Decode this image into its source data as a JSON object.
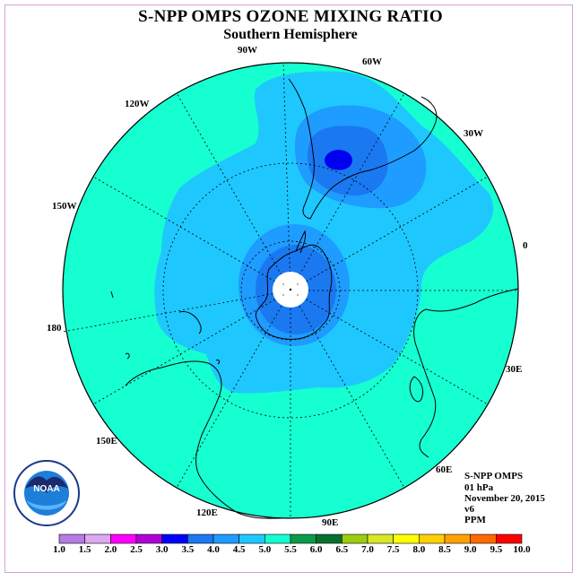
{
  "title": "S-NPP OMPS OZONE MIXING RATIO",
  "subtitle": "Southern Hemisphere",
  "longitude_labels": [
    "90W",
    "60W",
    "30W",
    "0",
    "30E",
    "60E",
    "90E",
    "120E",
    "150E",
    "180",
    "150W",
    "120W"
  ],
  "info": {
    "instrument": "S-NPP OMPS",
    "level": "01 hPa",
    "date": "November 20, 2015",
    "version": "v6",
    "units": "PPM"
  },
  "colorbar": {
    "ticks": [
      "1.0",
      "1.5",
      "2.0",
      "2.5",
      "3.0",
      "3.5",
      "4.0",
      "4.5",
      "5.0",
      "5.5",
      "6.0",
      "6.5",
      "7.0",
      "7.5",
      "8.0",
      "8.5",
      "9.0",
      "9.5",
      "10.0"
    ],
    "colors": [
      "#b57be6",
      "#dca8f0",
      "#ff00ff",
      "#b000d8",
      "#0000ff",
      "#1a78f0",
      "#1e9cff",
      "#1ec8ff",
      "#16ffd0",
      "#0b9a4a",
      "#06702e",
      "#9acd10",
      "#d8e826",
      "#ffff00",
      "#ffd000",
      "#ffa200",
      "#ff6a00",
      "#ff0000",
      "#8b5a3c"
    ]
  },
  "map_colors": {
    "c45_50": "#16ffd0",
    "c40_45": "#1ec8ff",
    "c35_40": "#1e9cff",
    "c30_35": "#1a78f0",
    "c25_30": "#0000ee",
    "pole_hole": "#ffffff"
  },
  "logo_text": "NOAA"
}
